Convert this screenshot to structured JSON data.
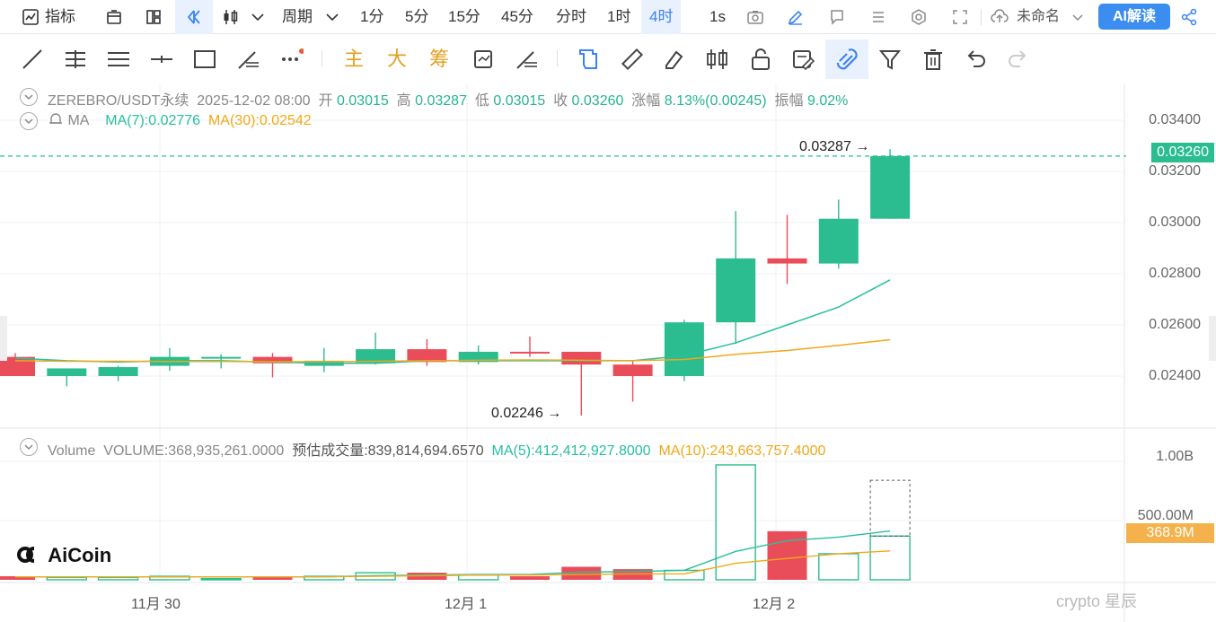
{
  "toolbar": {
    "indicators_label": "指标",
    "period_label": "周期",
    "intervals": [
      "1分",
      "5分",
      "15分",
      "45分",
      "分时",
      "1时",
      "4时"
    ],
    "active_interval": "4时",
    "refresh_label": "1s",
    "layout_name": "未命名",
    "ai_label": "AI解读"
  },
  "drawing_toolbar": {
    "text_tools": [
      "主",
      "大",
      "筹"
    ]
  },
  "chart_header": {
    "symbol": "ZEREBRO/USDT永续",
    "datetime": "2025-12-02 08:00",
    "open_label": "开",
    "open": "0.03015",
    "high_label": "高",
    "high": "0.03287",
    "low_label": "低",
    "low": "0.03015",
    "close_label": "收",
    "close": "0.03260",
    "change_label": "涨幅",
    "change": "8.13%(0.00245)",
    "amplitude_label": "振幅",
    "amplitude": "9.02%"
  },
  "ma_header": {
    "label": "MA",
    "ma7": "MA(7):0.02776",
    "ma30": "MA(30):0.02542"
  },
  "volume_header": {
    "label": "Volume",
    "volume": "VOLUME:368,935,261.0000",
    "estimated": "预估成交量:839,814,694.6570",
    "ma5": "MA(5):412,412,927.8000",
    "ma10": "MA(10):243,663,757.4000"
  },
  "price_axis": [
    "0.03400",
    "0.03200",
    "0.03000",
    "0.02800",
    "0.02600",
    "0.02400"
  ],
  "current_price": "0.03260",
  "volume_axis": [
    "1.00B",
    "500.00M"
  ],
  "current_volume": "368.9M",
  "date_axis": [
    "11月 30",
    "12月 1",
    "12月 2"
  ],
  "extremes": {
    "high": "0.03287",
    "low": "0.02246"
  },
  "logo_text": "AiCoin",
  "watermark_text": "crypto 星辰",
  "colors": {
    "up": "#2bbd8f",
    "down": "#ea4d5a",
    "ma7": "#27c0a0",
    "ma30": "#f0a818",
    "accent": "#3b8ef0"
  },
  "chart_data": {
    "type": "candlestick",
    "interval": "4时",
    "candles": [
      {
        "o": 0.02475,
        "h": 0.0249,
        "l": 0.024,
        "c": 0.024
      },
      {
        "o": 0.024,
        "h": 0.0242,
        "l": 0.0236,
        "c": 0.0243
      },
      {
        "o": 0.024,
        "h": 0.0244,
        "l": 0.0238,
        "c": 0.02435
      },
      {
        "o": 0.0244,
        "h": 0.0251,
        "l": 0.0242,
        "c": 0.02475
      },
      {
        "o": 0.0247,
        "h": 0.02485,
        "l": 0.0243,
        "c": 0.02475
      },
      {
        "o": 0.02475,
        "h": 0.0249,
        "l": 0.02395,
        "c": 0.0245
      },
      {
        "o": 0.0244,
        "h": 0.0251,
        "l": 0.02415,
        "c": 0.0246
      },
      {
        "o": 0.0245,
        "h": 0.0257,
        "l": 0.02445,
        "c": 0.02505
      },
      {
        "o": 0.02505,
        "h": 0.02545,
        "l": 0.0244,
        "c": 0.02455
      },
      {
        "o": 0.02455,
        "h": 0.0252,
        "l": 0.02445,
        "c": 0.02495
      },
      {
        "o": 0.02495,
        "h": 0.02555,
        "l": 0.02475,
        "c": 0.0249
      },
      {
        "o": 0.02495,
        "h": 0.02495,
        "l": 0.02246,
        "c": 0.02445
      },
      {
        "o": 0.02445,
        "h": 0.0246,
        "l": 0.023,
        "c": 0.024
      },
      {
        "o": 0.024,
        "h": 0.0262,
        "l": 0.0238,
        "c": 0.0261
      },
      {
        "o": 0.0261,
        "h": 0.03045,
        "l": 0.02525,
        "c": 0.0286
      },
      {
        "o": 0.0286,
        "h": 0.0303,
        "l": 0.0276,
        "c": 0.0284
      },
      {
        "o": 0.0284,
        "h": 0.0309,
        "l": 0.0282,
        "c": 0.03015
      },
      {
        "o": 0.03015,
        "h": 0.03287,
        "l": 0.03015,
        "c": 0.0326
      }
    ],
    "ma7": [
      0.0247,
      0.0246,
      0.02455,
      0.0246,
      0.0246,
      0.02455,
      0.0245,
      0.0245,
      0.0246,
      0.0246,
      0.0246,
      0.0246,
      0.0246,
      0.0248,
      0.0253,
      0.026,
      0.0267,
      0.02776
    ],
    "ma30": [
      0.0246,
      0.02458,
      0.02458,
      0.02457,
      0.02457,
      0.02456,
      0.02456,
      0.02458,
      0.0246,
      0.02462,
      0.02463,
      0.02462,
      0.0246,
      0.02465,
      0.02485,
      0.025,
      0.0252,
      0.02542
    ],
    "volumes": [
      0.03,
      0.02,
      0.02,
      0.03,
      0.01,
      0.02,
      0.03,
      0.06,
      0.06,
      0.04,
      0.03,
      0.11,
      0.09,
      0.08,
      0.97,
      0.41,
      0.22,
      0.369
    ],
    "estimated_last_volume": 0.84,
    "vol_ma5": [
      0.025,
      0.025,
      0.025,
      0.025,
      0.025,
      0.025,
      0.025,
      0.035,
      0.04,
      0.045,
      0.045,
      0.065,
      0.07,
      0.08,
      0.24,
      0.33,
      0.36,
      0.412
    ],
    "vol_ma10": [
      0.025,
      0.025,
      0.025,
      0.025,
      0.025,
      0.025,
      0.025,
      0.03,
      0.035,
      0.04,
      0.04,
      0.045,
      0.05,
      0.05,
      0.14,
      0.18,
      0.22,
      0.244
    ],
    "price_range": [
      0.021,
      0.035
    ],
    "volume_range": [
      0,
      1.0
    ],
    "grid": true
  }
}
